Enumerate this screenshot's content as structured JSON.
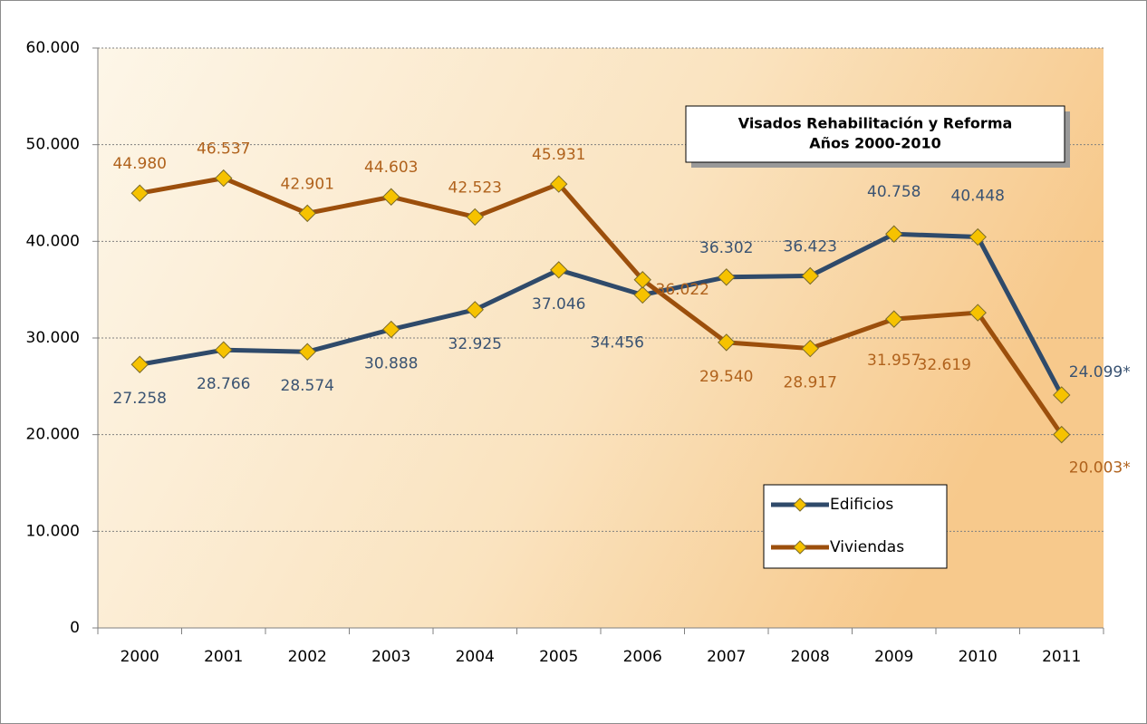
{
  "chart_data": {
    "type": "line",
    "title": [
      "Visados Rehabilitación y Reforma",
      "Años 2000-2010"
    ],
    "categories": [
      "2000",
      "2001",
      "2002",
      "2003",
      "2004",
      "2005",
      "2006",
      "2007",
      "2008",
      "2009",
      "2010",
      "2011"
    ],
    "series": [
      {
        "name": "Edificios",
        "color": "#2f4a6a",
        "label_color": "#3a5372",
        "values": [
          27258,
          28766,
          28574,
          30888,
          32925,
          37046,
          34456,
          36302,
          36423,
          40758,
          40448,
          24099
        ],
        "value_labels": [
          "27.258",
          "28.766",
          "28.574",
          "30.888",
          "32.925",
          "37.046",
          "34.456",
          "36.302",
          "36.423",
          "40.758",
          "40.448",
          "24.099*"
        ]
      },
      {
        "name": "Viviendas",
        "color": "#9c4f0c",
        "label_color": "#b0621c",
        "values": [
          44980,
          46537,
          42901,
          44603,
          42523,
          45931,
          36022,
          29540,
          28917,
          31957,
          32619,
          20003
        ],
        "value_labels": [
          "44.980",
          "46.537",
          "42.901",
          "44.603",
          "42.523",
          "45.931",
          "36.022",
          "29.540",
          "28.917",
          "31.957",
          "32.619",
          "20.003*"
        ]
      }
    ],
    "marker_color": "#f6c200",
    "ylim": [
      0,
      60000
    ],
    "yticks": [
      0,
      {
        "value": 10000,
        "label": "10.000"
      },
      {
        "value": 20000,
        "label": "20.000"
      },
      {
        "value": 30000,
        "label": "30.000"
      },
      {
        "value": 40000,
        "label": "40.000"
      },
      {
        "value": 50000,
        "label": "50.000"
      },
      {
        "value": 60000,
        "label": "60.000"
      }
    ],
    "grid": true
  }
}
